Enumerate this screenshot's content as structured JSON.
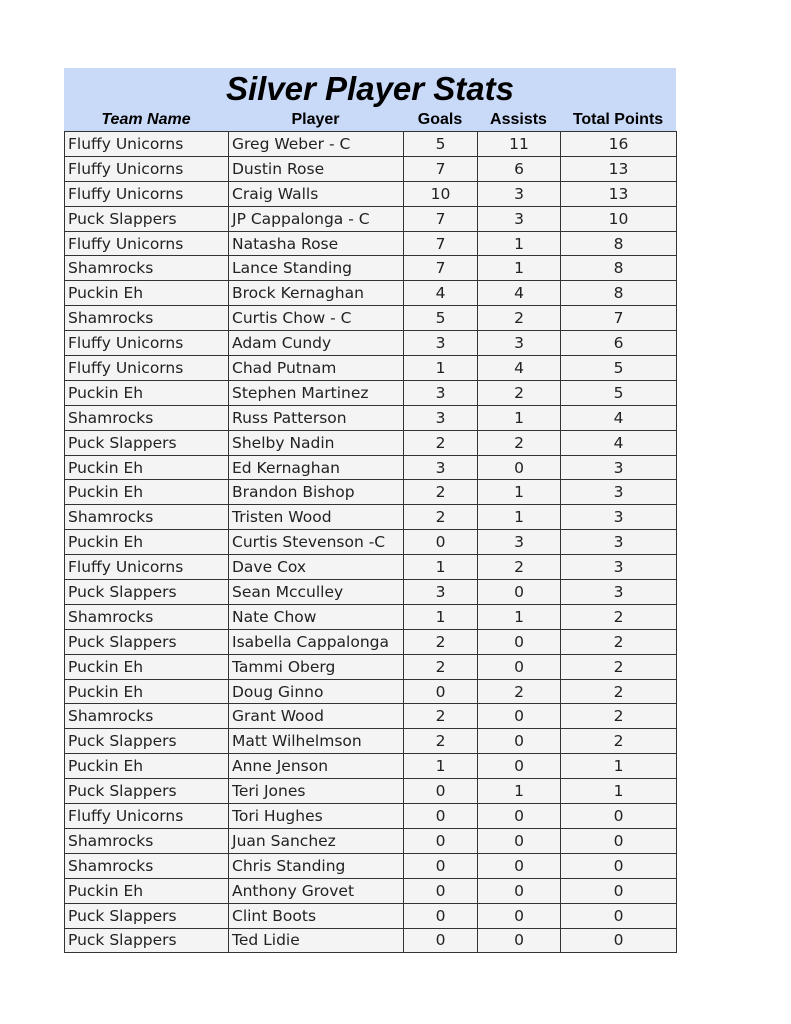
{
  "title": "Silver Player Stats",
  "columns": [
    "Team Name",
    "Player",
    "Goals",
    "Assists",
    "Total Points"
  ],
  "rows": [
    [
      "Fluffy Unicorns",
      "Greg Weber - C",
      "5",
      "11",
      "16"
    ],
    [
      "Fluffy Unicorns",
      "Dustin Rose",
      "7",
      "6",
      "13"
    ],
    [
      "Fluffy Unicorns",
      "Craig Walls",
      "10",
      "3",
      "13"
    ],
    [
      "Puck Slappers",
      "JP Cappalonga - C",
      "7",
      "3",
      "10"
    ],
    [
      "Fluffy Unicorns",
      "Natasha Rose",
      "7",
      "1",
      "8"
    ],
    [
      "Shamrocks",
      "Lance Standing",
      "7",
      "1",
      "8"
    ],
    [
      "Puckin Eh",
      "Brock Kernaghan",
      "4",
      "4",
      "8"
    ],
    [
      "Shamrocks",
      "Curtis Chow - C",
      "5",
      "2",
      "7"
    ],
    [
      "Fluffy Unicorns",
      "Adam Cundy",
      "3",
      "3",
      "6"
    ],
    [
      "Fluffy Unicorns",
      "Chad Putnam",
      "1",
      "4",
      "5"
    ],
    [
      "Puckin Eh",
      "Stephen Martinez",
      "3",
      "2",
      "5"
    ],
    [
      "Shamrocks",
      "Russ Patterson",
      "3",
      "1",
      "4"
    ],
    [
      "Puck Slappers",
      "Shelby Nadin",
      "2",
      "2",
      "4"
    ],
    [
      "Puckin Eh",
      "Ed Kernaghan",
      "3",
      "0",
      "3"
    ],
    [
      "Puckin Eh",
      "Brandon Bishop",
      "2",
      "1",
      "3"
    ],
    [
      "Shamrocks",
      "Tristen Wood",
      "2",
      "1",
      "3"
    ],
    [
      "Puckin Eh",
      "Curtis Stevenson -C",
      "0",
      "3",
      "3"
    ],
    [
      "Fluffy Unicorns",
      "Dave Cox",
      "1",
      "2",
      "3"
    ],
    [
      "Puck Slappers",
      "Sean Mcculley",
      "3",
      "0",
      "3"
    ],
    [
      "Shamrocks",
      "Nate Chow",
      "1",
      "1",
      "2"
    ],
    [
      "Puck Slappers",
      "Isabella Cappalonga",
      "2",
      "0",
      "2"
    ],
    [
      "Puckin Eh",
      "Tammi Oberg",
      "2",
      "0",
      "2"
    ],
    [
      "Puckin Eh",
      "Doug Ginno",
      "0",
      "2",
      "2"
    ],
    [
      "Shamrocks",
      "Grant Wood",
      "2",
      "0",
      "2"
    ],
    [
      "Puck Slappers",
      "Matt Wilhelmson",
      "2",
      "0",
      "2"
    ],
    [
      "Puckin Eh",
      "Anne Jenson",
      "1",
      "0",
      "1"
    ],
    [
      "Puck Slappers",
      "Teri Jones",
      "0",
      "1",
      "1"
    ],
    [
      "Fluffy Unicorns",
      "Tori Hughes",
      "0",
      "0",
      "0"
    ],
    [
      "Shamrocks",
      "Juan Sanchez",
      "0",
      "0",
      "0"
    ],
    [
      "Shamrocks",
      "Chris Standing",
      "0",
      "0",
      "0"
    ],
    [
      "Puckin Eh",
      "Anthony Grovet",
      "0",
      "0",
      "0"
    ],
    [
      "Puck Slappers",
      "Clint Boots",
      "0",
      "0",
      "0"
    ],
    [
      "Puck Slappers",
      "Ted Lidie",
      "0",
      "0",
      "0"
    ]
  ],
  "colors": {
    "header_bg": "#c9daf8",
    "cell_bg": "#f4f4f4"
  }
}
